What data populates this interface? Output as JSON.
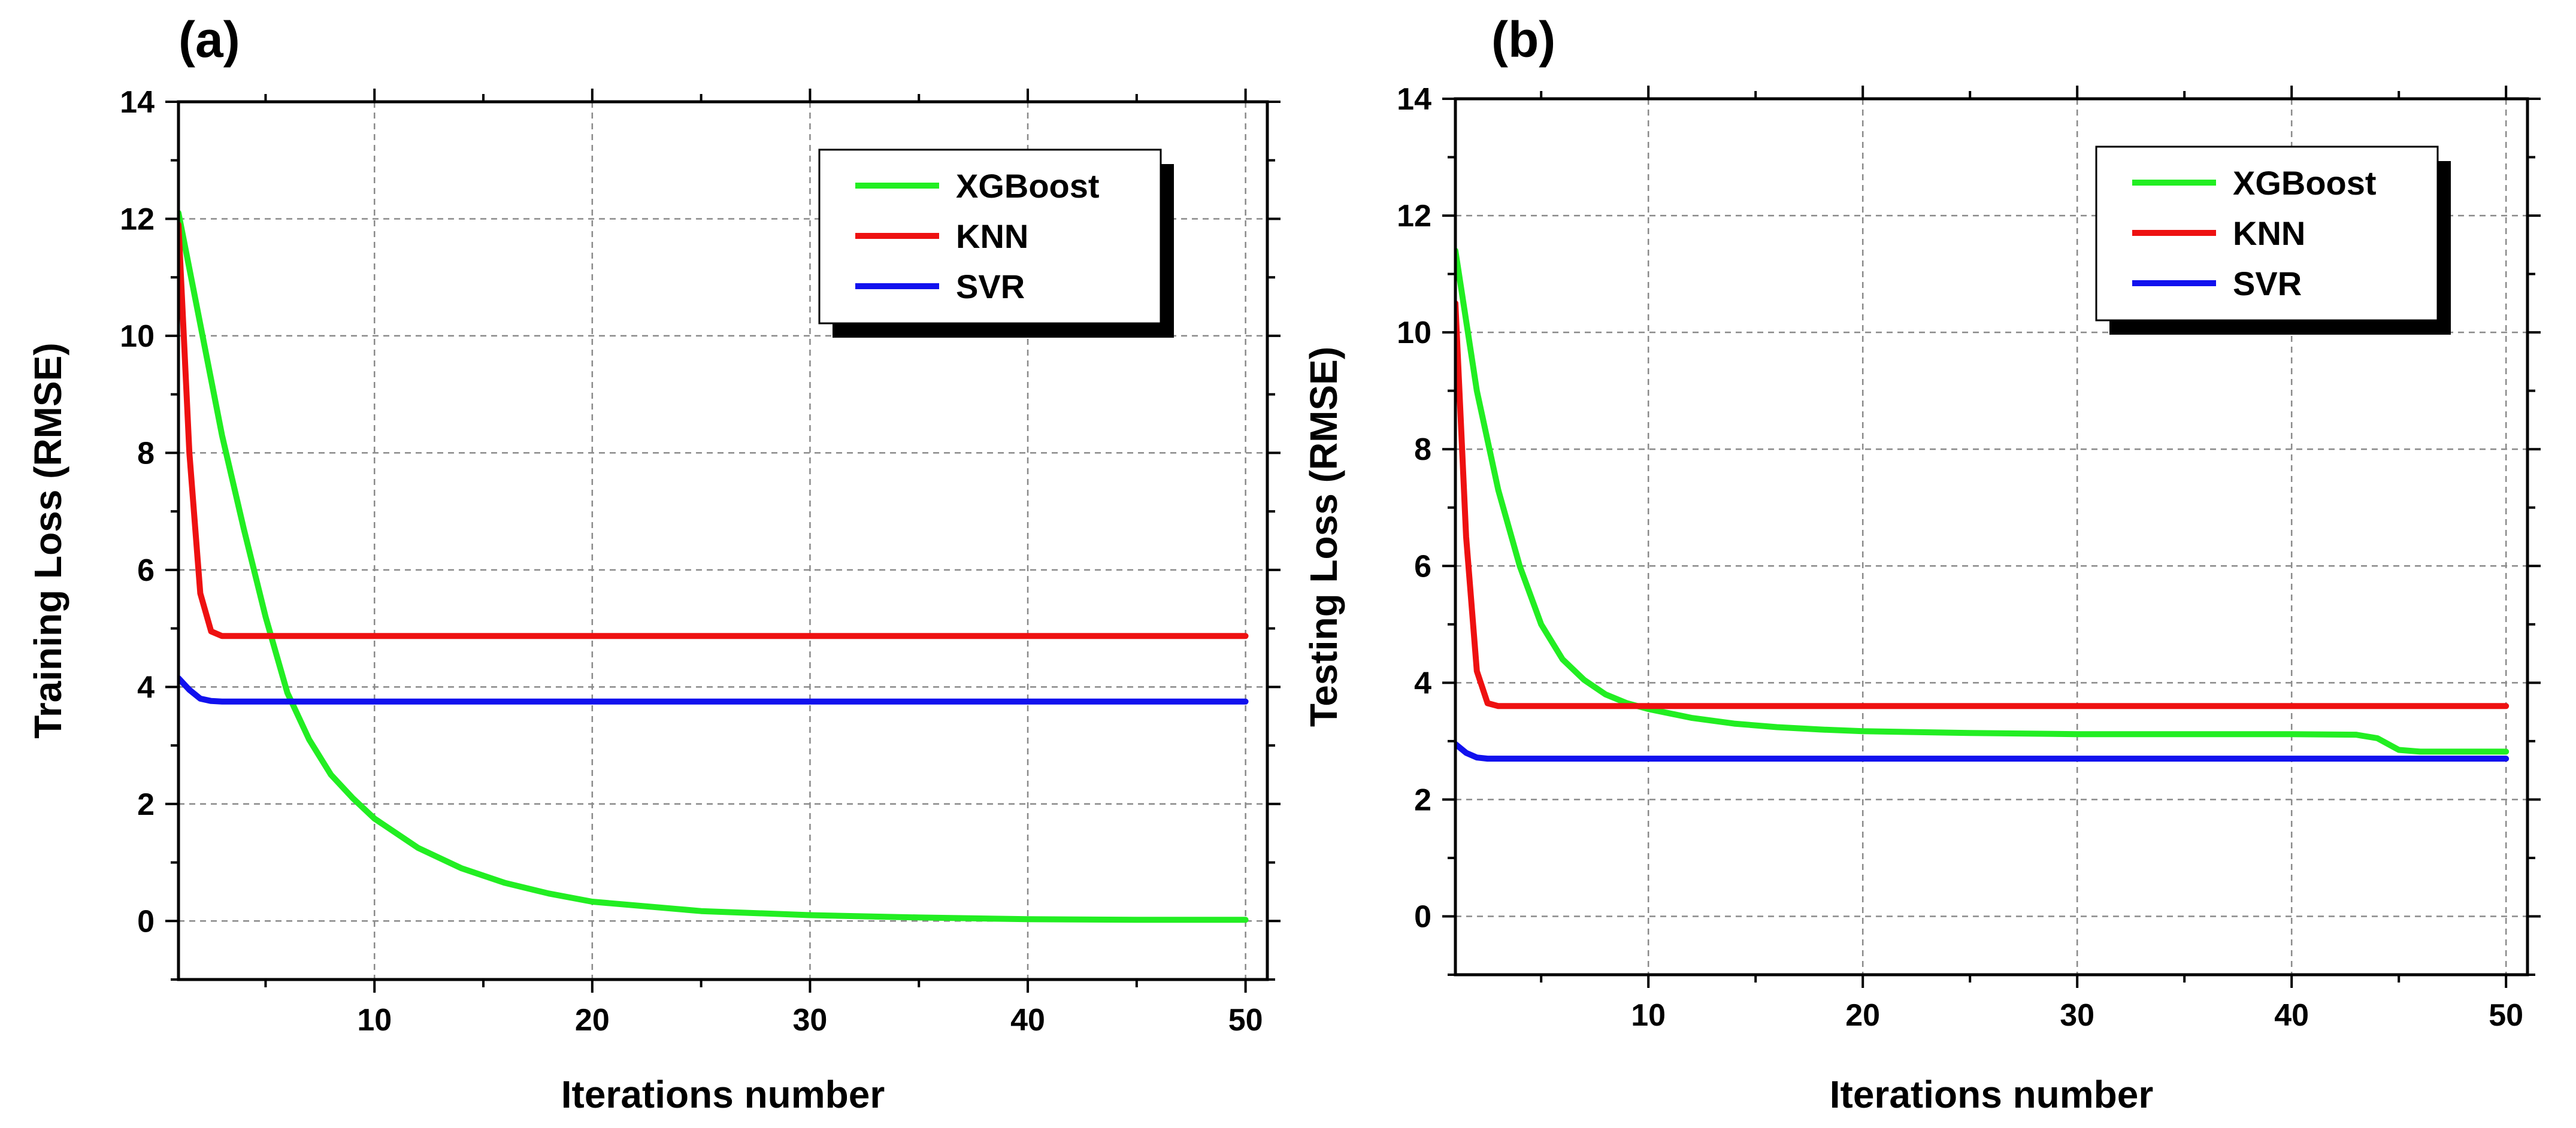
{
  "chart_data": [
    {
      "type": "line",
      "panel_label": "(a)",
      "title": "",
      "xlabel": "Iterations number",
      "ylabel": "Training Loss (RMSE)",
      "xlim": [
        1,
        51
      ],
      "ylim": [
        -1,
        14
      ],
      "x_ticks": [
        10,
        20,
        30,
        40,
        50
      ],
      "y_ticks": [
        0,
        2,
        4,
        6,
        8,
        10,
        12,
        14
      ],
      "grid": true,
      "legend_position": "top-right",
      "series": [
        {
          "name": "XGBoost",
          "color": "#22ee22",
          "x": [
            1,
            2,
            3,
            4,
            5,
            6,
            7,
            8,
            9,
            10,
            12,
            14,
            16,
            18,
            20,
            25,
            30,
            35,
            40,
            45,
            50
          ],
          "y": [
            12.1,
            10.2,
            8.3,
            6.7,
            5.2,
            3.9,
            3.1,
            2.5,
            2.1,
            1.75,
            1.25,
            0.9,
            0.65,
            0.47,
            0.33,
            0.17,
            0.1,
            0.06,
            0.03,
            0.02,
            0.02
          ]
        },
        {
          "name": "KNN",
          "color": "#ee1111",
          "x": [
            1,
            1.5,
            2,
            2.5,
            3,
            4,
            10,
            20,
            30,
            40,
            50
          ],
          "y": [
            11.9,
            8.0,
            5.6,
            4.95,
            4.87,
            4.87,
            4.87,
            4.87,
            4.87,
            4.87,
            4.87
          ]
        },
        {
          "name": "SVR",
          "color": "#1111ee",
          "x": [
            1,
            1.5,
            2,
            2.5,
            3,
            4,
            10,
            20,
            30,
            40,
            50
          ],
          "y": [
            4.15,
            3.95,
            3.8,
            3.76,
            3.75,
            3.75,
            3.75,
            3.75,
            3.75,
            3.75,
            3.75
          ]
        }
      ]
    },
    {
      "type": "line",
      "panel_label": "(b)",
      "title": "",
      "xlabel": "Iterations number",
      "ylabel": "Testing Loss (RMSE)",
      "xlim": [
        1,
        51
      ],
      "ylim": [
        -1,
        14
      ],
      "x_ticks": [
        10,
        20,
        30,
        40,
        50
      ],
      "y_ticks": [
        0,
        2,
        4,
        6,
        8,
        10,
        12,
        14
      ],
      "grid": true,
      "legend_position": "top-right",
      "series": [
        {
          "name": "XGBoost",
          "color": "#22ee22",
          "x": [
            1,
            2,
            3,
            4,
            5,
            6,
            7,
            8,
            9,
            10,
            12,
            14,
            16,
            18,
            20,
            25,
            30,
            35,
            40,
            43,
            44,
            45,
            46,
            50
          ],
          "y": [
            11.4,
            9.0,
            7.3,
            6.0,
            5.0,
            4.4,
            4.05,
            3.8,
            3.65,
            3.55,
            3.4,
            3.3,
            3.24,
            3.2,
            3.17,
            3.14,
            3.12,
            3.12,
            3.12,
            3.11,
            3.05,
            2.85,
            2.82,
            2.82
          ]
        },
        {
          "name": "KNN",
          "color": "#ee1111",
          "x": [
            1,
            1.5,
            2,
            2.5,
            3,
            4,
            10,
            20,
            30,
            40,
            50
          ],
          "y": [
            10.5,
            6.5,
            4.2,
            3.65,
            3.6,
            3.6,
            3.6,
            3.6,
            3.6,
            3.6,
            3.6
          ]
        },
        {
          "name": "SVR",
          "color": "#1111ee",
          "x": [
            1,
            1.5,
            2,
            2.5,
            3,
            4,
            10,
            20,
            30,
            40,
            50
          ],
          "y": [
            2.95,
            2.8,
            2.72,
            2.7,
            2.7,
            2.7,
            2.7,
            2.7,
            2.7,
            2.7,
            2.7
          ]
        }
      ]
    }
  ]
}
